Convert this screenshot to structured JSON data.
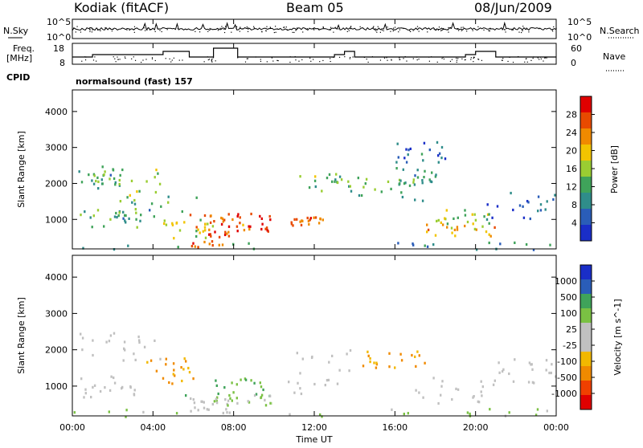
{
  "header": {
    "station": "Kodiak (fitACF)",
    "beam": "Beam 05",
    "date": "08/Jun/2009"
  },
  "strip_labels": {
    "nsky": "N.Sky",
    "nsearch": "N.Search",
    "freq_line1": "Freq.",
    "freq_line2": "[MHz]",
    "nave": "Nave",
    "cpid": "CPID",
    "cpid_value": "normalsound (fast) 157"
  },
  "strip_ticks": {
    "noise_left": [
      "10^5",
      "10^0"
    ],
    "noise_right": [
      "10^5",
      "10^0"
    ],
    "freq_left": [
      "18",
      "8"
    ],
    "nave_right": [
      "60",
      "0"
    ]
  },
  "x_axis": {
    "label": "Time UT",
    "ticks": [
      "00:00",
      "04:00",
      "08:00",
      "12:00",
      "16:00",
      "20:00",
      "00:00"
    ],
    "range_hours": [
      0,
      24
    ]
  },
  "colors": {
    "power_scale": [
      "#1a2ec8",
      "#2a5db8",
      "#2f8d8a",
      "#3fa35a",
      "#9acd32",
      "#f2c400",
      "#f08a00",
      "#e84a00",
      "#e00000"
    ],
    "velocity_scale": [
      "#e00000",
      "#f04000",
      "#f08a00",
      "#f2b800",
      "#c0c0c0",
      "#c0c0c0",
      "#7ac143",
      "#3fa35a",
      "#2a5db8",
      "#1a2ec8"
    ]
  },
  "chart_data": [
    {
      "type": "heatmap",
      "name": "power",
      "ylabel": "Slant Range [km]",
      "xlabel": "",
      "ylim": [
        180,
        4600
      ],
      "xlim": [
        0,
        24
      ],
      "yticks": [
        1000,
        2000,
        3000,
        4000
      ],
      "colorbar": {
        "label": "Power [dB]",
        "ticks": [
          "28",
          "24",
          "20",
          "16",
          "12",
          "8",
          "4"
        ],
        "range": [
          0,
          30
        ]
      },
      "gap_hours": [
        9.9,
        10.6
      ],
      "blobs": [
        {
          "t0": 0.3,
          "t1": 2.5,
          "r0": 1950,
          "r1": 2400,
          "lvl": 0.35
        },
        {
          "t0": 1.2,
          "t1": 4.5,
          "r0": 1700,
          "r1": 2500,
          "lvl": 0.45
        },
        {
          "t0": 0.2,
          "t1": 3.5,
          "r0": 700,
          "r1": 1300,
          "lvl": 0.4
        },
        {
          "t0": 2.0,
          "t1": 6.5,
          "r0": 1000,
          "r1": 1700,
          "lvl": 0.35
        },
        {
          "t0": 5.5,
          "t1": 8.5,
          "r0": 700,
          "r1": 1200,
          "lvl": 0.75
        },
        {
          "t0": 7.0,
          "t1": 9.9,
          "r0": 700,
          "r1": 1300,
          "lvl": 0.9
        },
        {
          "t0": 5.8,
          "t1": 7.8,
          "r0": 250,
          "r1": 700,
          "lvl": 0.85
        },
        {
          "t0": 4.5,
          "t1": 7.0,
          "r0": 500,
          "r1": 1000,
          "lvl": 0.55
        },
        {
          "t0": 10.6,
          "t1": 12.5,
          "r0": 850,
          "r1": 1150,
          "lvl": 0.8
        },
        {
          "t0": 11.2,
          "t1": 13.8,
          "r0": 1800,
          "r1": 2300,
          "lvl": 0.45
        },
        {
          "t0": 14.0,
          "t1": 17.5,
          "r0": 1500,
          "r1": 2200,
          "lvl": 0.4
        },
        {
          "t0": 16.0,
          "t1": 18.0,
          "r0": 2000,
          "r1": 2500,
          "lvl": 0.35
        },
        {
          "t0": 17.5,
          "t1": 21.0,
          "r0": 550,
          "r1": 900,
          "lvl": 0.65
        },
        {
          "t0": 18.0,
          "t1": 20.8,
          "r0": 900,
          "r1": 1300,
          "lvl": 0.5
        },
        {
          "t0": 20.5,
          "t1": 24.0,
          "r0": 1000,
          "r1": 1800,
          "lvl": 0.2
        },
        {
          "t0": 16.0,
          "t1": 18.5,
          "r0": 2600,
          "r1": 3200,
          "lvl": 0.2
        },
        {
          "t0": 0.0,
          "t1": 24.0,
          "r0": 180,
          "r1": 420,
          "lvl": 0.3
        }
      ]
    },
    {
      "type": "heatmap",
      "name": "velocity",
      "ylabel": "Slant Range [km]",
      "xlabel": "Time UT",
      "ylim": [
        180,
        4600
      ],
      "xlim": [
        0,
        24
      ],
      "yticks": [
        1000,
        2000,
        3000,
        4000
      ],
      "colorbar": {
        "label": "Velocity [m s^-1]",
        "ticks": [
          "1000",
          "500",
          "100",
          "25",
          "-25",
          "-100",
          "-500",
          "-1000"
        ],
        "range": [
          -1000,
          1000
        ]
      },
      "gap_hours": [
        9.9,
        10.6
      ],
      "blobs": [
        {
          "t0": 0.3,
          "t1": 4.5,
          "r0": 1700,
          "r1": 2500,
          "v": 0.5
        },
        {
          "t0": 0.2,
          "t1": 3.5,
          "r0": 700,
          "r1": 1300,
          "v": 0.5
        },
        {
          "t0": 3.5,
          "t1": 6.0,
          "r0": 1100,
          "r1": 1800,
          "v": 0.3
        },
        {
          "t0": 5.5,
          "t1": 9.9,
          "r0": 700,
          "r1": 1300,
          "v": 0.7
        },
        {
          "t0": 7.0,
          "t1": 9.9,
          "r0": 500,
          "r1": 800,
          "v": 0.62
        },
        {
          "t0": 5.8,
          "t1": 7.8,
          "r0": 250,
          "r1": 700,
          "v": 0.48
        },
        {
          "t0": 10.6,
          "t1": 13.8,
          "r0": 800,
          "r1": 2300,
          "v": 0.5
        },
        {
          "t0": 14.0,
          "t1": 17.5,
          "r0": 1500,
          "r1": 2000,
          "v": 0.3
        },
        {
          "t0": 17.0,
          "t1": 21.0,
          "r0": 550,
          "r1": 1300,
          "v": 0.5
        },
        {
          "t0": 20.5,
          "t1": 24.0,
          "r0": 1000,
          "r1": 1800,
          "v": 0.5
        },
        {
          "t0": 0.0,
          "t1": 24.0,
          "r0": 180,
          "r1": 420,
          "v": 0.62
        }
      ]
    }
  ]
}
